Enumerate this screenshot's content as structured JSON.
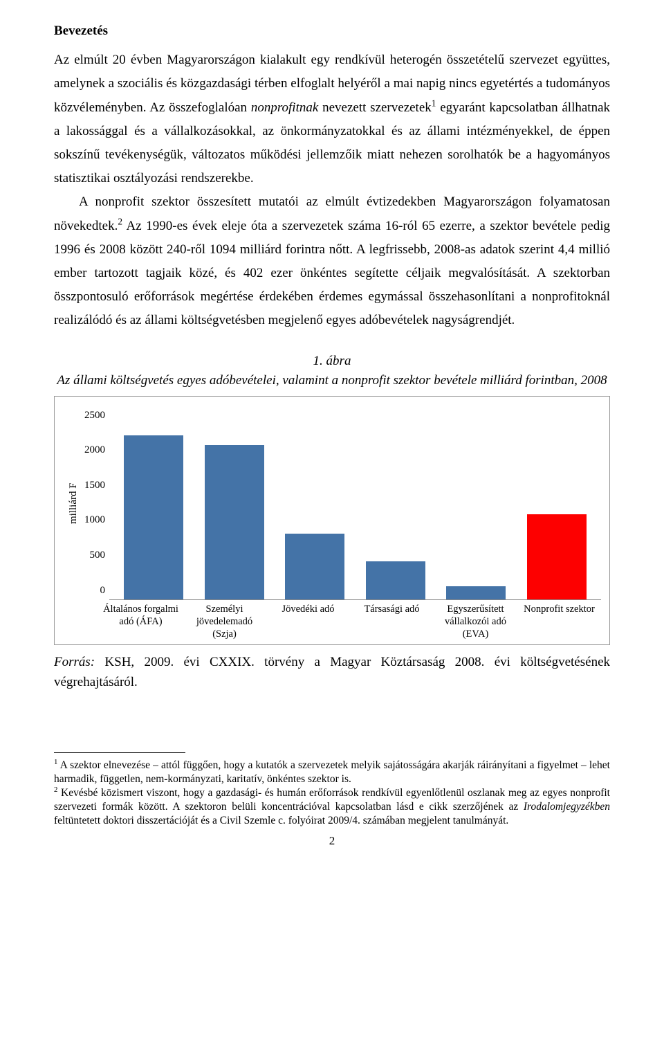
{
  "heading": "Bevezetés",
  "p1a": "Az elmúlt 20 évben Magyarországon kialakult egy rendkívül heterogén összetételű szervezet együttes, amelynek a szociális és közgazdasági térben elfoglalt helyéről a mai napig nincs egyetértés a tudományos közvéleményben. Az összefoglalóan ",
  "p1_em": "nonprofitnak",
  "p1b": " nevezett szervezetek",
  "p1_sup": "1",
  "p1c": " egyaránt kapcsolatban állhatnak a lakossággal és a vállalkozásokkal, az önkormányzatokkal és az állami intézményekkel, de éppen sokszínű tevékenységük, változatos működési jellemzőik miatt nehezen sorolhatók be a hagyományos statisztikai osztályozási rendszerekbe.",
  "p2a": "A nonprofit szektor összesített mutatói az elmúlt évtizedekben Magyarországon folyamatosan növekedtek.",
  "p2_sup": "2",
  "p2b": " Az 1990-es évek eleje óta a szervezetek száma 16-ról 65 ezerre, a szektor bevétele pedig 1996 és 2008 között 240-ről 1094 milliárd forintra nőtt. A legfrissebb, 2008-as adatok szerint 4,4 millió ember tartozott tagjaik közé, és 402 ezer önkéntes segítette céljaik megvalósítását. A szektorban összpontosuló erőforrások megértése érdekében érdemes egymással összehasonlítani a nonprofitoknál realizálódó és az állami költségvetésben megjelenő egyes adóbevételek nagyságrendjét.",
  "fig_num": "1. ábra",
  "fig_title": "Az állami költségvetés egyes adóbevételei, valamint a nonprofit szektor bevétele milliárd forintban, 2008",
  "chart": {
    "ylabel": "milliárd F",
    "ymax": 2500,
    "yticks": [
      "2500",
      "2000",
      "1500",
      "1000",
      "500",
      "0"
    ],
    "bar_color_default": "#4473a7",
    "bar_color_highlight": "#fd0000",
    "bars": [
      {
        "label": "Általános forgalmi adó (ÁFA)",
        "value": 2120,
        "color": "#4473a7"
      },
      {
        "label": "Személyi jövedelemadó (Szja)",
        "value": 1990,
        "color": "#4473a7"
      },
      {
        "label": "Jövedéki adó",
        "value": 850,
        "color": "#4473a7"
      },
      {
        "label": "Társasági adó",
        "value": 490,
        "color": "#4473a7"
      },
      {
        "label": "Egyszerűsített vállalkozói adó (EVA)",
        "value": 170,
        "color": "#4473a7"
      },
      {
        "label": "Nonprofit szektor",
        "value": 1094,
        "color": "#fd0000"
      }
    ]
  },
  "src_a": "Forrás:",
  "src_b": " KSH, 2009. évi CXXIX. törvény a Magyar Köztársaság 2008. évi költségvetésének végrehajtásáról.",
  "fn1_sup": "1",
  "fn1": " A szektor elnevezése – attól függően, hogy a kutatók a szervezetek melyik sajátosságára akarják ráirányítani a figyelmet – lehet harmadik, független, nem-kormányzati, karitatív, önkéntes szektor is.",
  "fn2_sup": "2",
  "fn2a": " Kevésbé közismert viszont, hogy a gazdasági- és humán erőforrások rendkívül egyenlőtlenül oszlanak meg az egyes nonprofit szervezeti formák között. A szektoron belüli koncentrációval kapcsolatban lásd e cikk szerzőjének az ",
  "fn2_em": "Irodalomjegyzékben",
  "fn2b": " feltüntetett doktori disszertációját és a Civil Szemle c. folyóirat 2009/4. számában megjelent tanulmányát.",
  "page": "2"
}
